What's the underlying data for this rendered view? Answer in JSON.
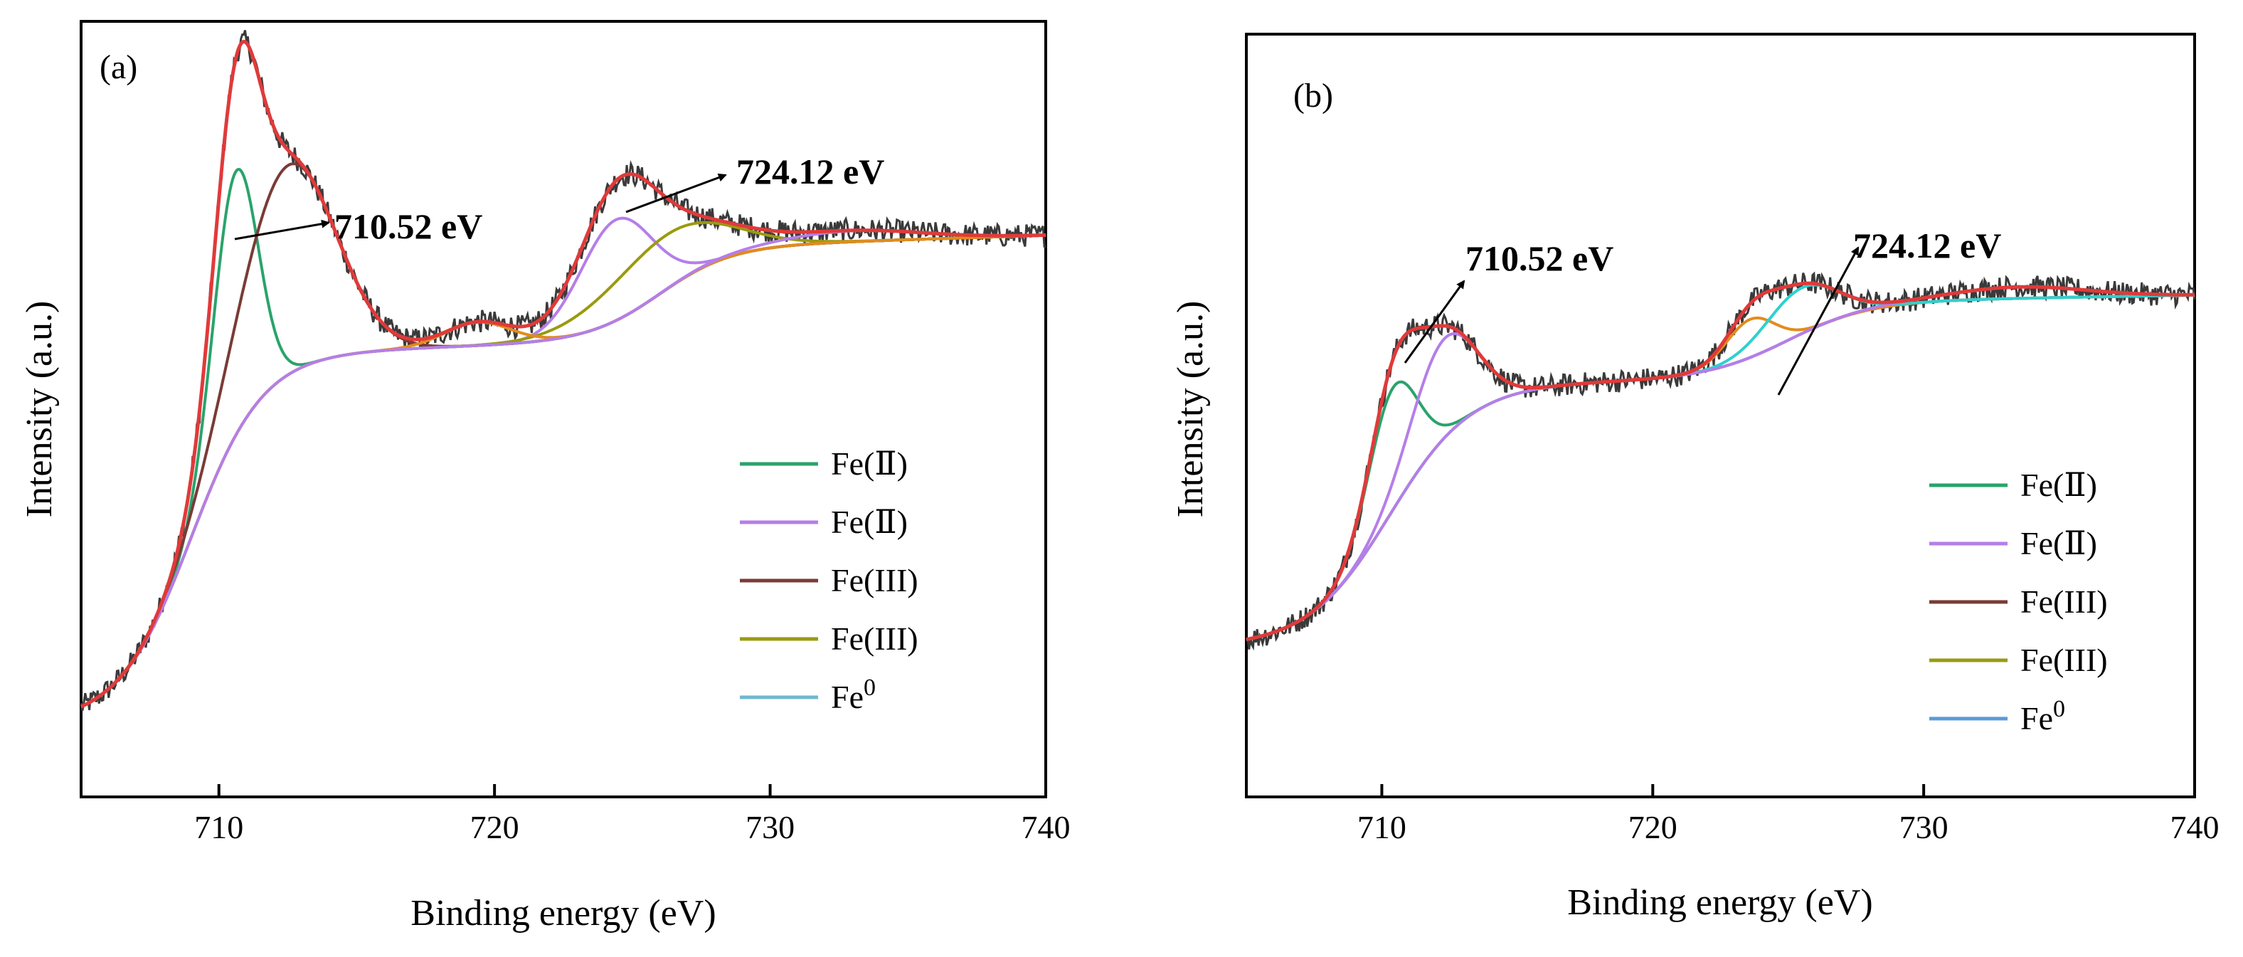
{
  "figure": {
    "panels": [
      "a",
      "b"
    ]
  },
  "colors": {
    "envelope": "#e03a3a",
    "raw": "#3a3a3a",
    "fe2_a": "#2aa36b",
    "fe2_b": "#b57ee8",
    "fe3_a": "#7a3b36",
    "fe3_b": "#9a9a10",
    "fe0": "#6fb8cf",
    "sat_orange": "#e38b1c",
    "sat_cyan": "#2fd0cf",
    "fe0_b": "#5a9ad8"
  },
  "chart_data": [
    {
      "type": "line",
      "panel_label": "(a)",
      "xlabel": "Binding energy (eV)",
      "ylabel": "Intensity (a.u.)",
      "xlim": [
        705,
        740
      ],
      "ylim": [
        0,
        1
      ],
      "xticks": [
        710,
        720,
        730,
        740
      ],
      "xtick_labels": [
        "710",
        "720",
        "730",
        "740"
      ],
      "baseline": {
        "bg": 0.1,
        "amp": 0.47,
        "center": 709.0,
        "width": 1.3,
        "slope": 0.0011,
        "tail_center": 726.0,
        "tail_amp": 0.12,
        "tail_width": 1.3
      },
      "components": [
        {
          "name": "Fe(Ⅱ)",
          "key": "fe2_a",
          "center": 710.6,
          "height": 0.34,
          "sigma": 0.8
        },
        {
          "name": "Fe(Ⅱ)",
          "key": "fe2_b",
          "center": 724.4,
          "height": 0.13,
          "sigma": 1.3
        },
        {
          "name": "Fe(III)",
          "key": "fe3_a",
          "center": 712.5,
          "height": 0.27,
          "sigma": 1.7
        },
        {
          "name": "Fe(III)",
          "key": "fe3_b",
          "center": 726.2,
          "height": 0.07,
          "sigma": 2.2
        },
        {
          "name": "Fe0",
          "key": "fe0",
          "center": null,
          "height": 0,
          "sigma": 0
        }
      ],
      "extra_peaks": [
        {
          "key": "sat_orange",
          "center": 719.4,
          "height": 0.03,
          "sigma": 1.2
        },
        {
          "key": "fe2_b",
          "center": 733.0,
          "height": 0.014,
          "sigma": 2.5
        }
      ],
      "legend": [
        {
          "label": "Fe(Ⅱ)",
          "key": "fe2_a"
        },
        {
          "label": "Fe(Ⅱ)",
          "key": "fe2_b"
        },
        {
          "label": "Fe(III)",
          "key": "fe3_a"
        },
        {
          "label": "Fe(III)",
          "key": "fe3_b"
        },
        {
          "label": "Fe",
          "sup": "0",
          "key": "fe0"
        }
      ],
      "annotations": [
        {
          "text": "710.52 eV",
          "x": 710.52,
          "tip_x": 710.6
        },
        {
          "text": "724.12 eV",
          "x": 724.12,
          "tip_x": 724.4
        }
      ]
    },
    {
      "type": "line",
      "panel_label": "(b)",
      "xlabel": "Binding energy (eV)",
      "ylabel": "Intensity (a.u.)",
      "xlim": [
        705,
        740
      ],
      "ylim": [
        0,
        1
      ],
      "xticks": [
        710,
        720,
        730,
        740
      ],
      "xtick_labels": [
        "710",
        "720",
        "730",
        "740"
      ],
      "baseline": {
        "bg": 0.2,
        "amp": 0.34,
        "center": 710.3,
        "width": 1.5,
        "slope": 0.0006,
        "tail_center": 725.0,
        "tail_amp": 0.1,
        "tail_width": 1.5
      },
      "components": [
        {
          "name": "Fe(Ⅱ)",
          "key": "fe2_a",
          "center": 710.4,
          "height": 0.16,
          "sigma": 0.9
        },
        {
          "name": "Fe(Ⅱ)",
          "key": "fe2_b",
          "center": 712.3,
          "height": 0.13,
          "sigma": 1.2
        },
        {
          "name": "Fe(III)",
          "key": "sat_orange",
          "center": 723.6,
          "height": 0.05,
          "sigma": 0.9
        },
        {
          "name": "Fe(III)",
          "key": "sat_cyan",
          "center": 725.5,
          "height": 0.06,
          "sigma": 1.3
        },
        {
          "name": "Fe0",
          "key": "fe0_b",
          "center": null,
          "height": 0,
          "sigma": 0
        }
      ],
      "extra_peaks": [
        {
          "key": "fe2_b",
          "center": 733.5,
          "height": 0.015,
          "sigma": 2.5
        }
      ],
      "legend": [
        {
          "label": "Fe(Ⅱ)",
          "key": "fe2_a"
        },
        {
          "label": "Fe(Ⅱ)",
          "key": "fe2_b"
        },
        {
          "label": "Fe(III)",
          "key": "fe3_a"
        },
        {
          "label": "Fe(III)",
          "key": "fe3_b"
        },
        {
          "label": "Fe",
          "sup": "0",
          "key": "fe0_b"
        }
      ],
      "annotations": [
        {
          "text": "710.52 eV",
          "x": 710.52,
          "tip_x": 710.5
        },
        {
          "text": "724.12 eV",
          "x": 724.12,
          "tip_x": 725.4
        }
      ]
    }
  ]
}
